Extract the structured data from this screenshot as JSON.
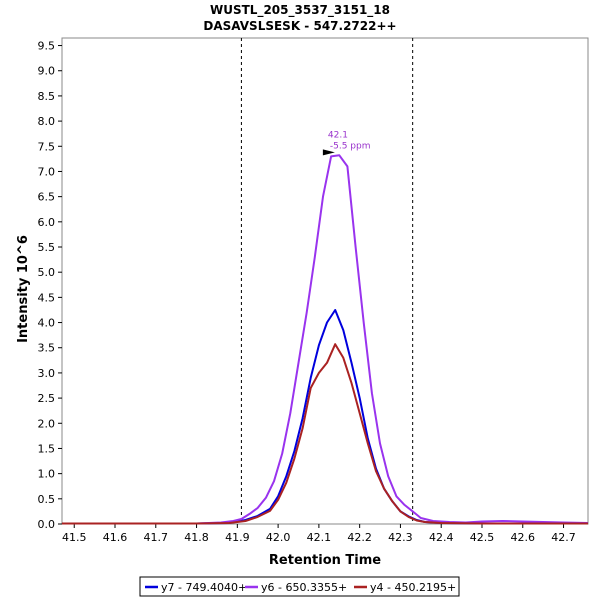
{
  "chart_data": {
    "type": "line",
    "title": "WUSTL_205_3537_3151_18",
    "subtitle": "DASAVSLSESK - 547.2722++",
    "xlabel": "Retention Time",
    "ylabel": "Intensity 10^6",
    "xlim": [
      41.47,
      42.76
    ],
    "ylim": [
      0,
      9.65
    ],
    "x_ticks": [
      "41.5",
      "41.6",
      "41.7",
      "41.8",
      "41.9",
      "42.0",
      "42.1",
      "42.2",
      "42.3",
      "42.4",
      "42.5",
      "42.6",
      "42.7"
    ],
    "y_ticks": [
      "0.0",
      "0.5",
      "1.0",
      "1.5",
      "2.0",
      "2.5",
      "3.0",
      "3.5",
      "4.0",
      "4.5",
      "5.0",
      "5.5",
      "6.0",
      "6.5",
      "7.0",
      "7.5",
      "8.0",
      "8.5",
      "9.0",
      "9.5"
    ],
    "boundaries": [
      41.91,
      42.33
    ],
    "annotation": {
      "x": 42.1,
      "y": 7.38,
      "line1": "42.1",
      "line2": "-5.5 ppm",
      "color": "#9933cc"
    },
    "legend_position": "bottom",
    "series": [
      {
        "name": "y7 - 749.4040+",
        "color": "#0000dd",
        "x": [
          41.47,
          41.8,
          41.88,
          41.92,
          41.95,
          41.98,
          42.0,
          42.02,
          42.04,
          42.06,
          42.08,
          42.1,
          42.12,
          42.14,
          42.16,
          42.18,
          42.2,
          42.22,
          42.24,
          42.26,
          42.28,
          42.3,
          42.32,
          42.34,
          42.36,
          42.4,
          42.5,
          42.6,
          42.76
        ],
        "y": [
          0.01,
          0.01,
          0.02,
          0.08,
          0.16,
          0.3,
          0.55,
          0.95,
          1.45,
          2.1,
          2.9,
          3.55,
          4.0,
          4.25,
          3.85,
          3.2,
          2.5,
          1.7,
          1.1,
          0.7,
          0.45,
          0.25,
          0.15,
          0.08,
          0.04,
          0.02,
          0.01,
          0.01,
          0.01
        ]
      },
      {
        "name": "y6 - 650.3355+",
        "color": "#9933ee",
        "x": [
          41.47,
          41.8,
          41.86,
          41.89,
          41.91,
          41.93,
          41.95,
          41.97,
          41.99,
          42.01,
          42.03,
          42.05,
          42.07,
          42.09,
          42.11,
          42.13,
          42.15,
          42.17,
          42.19,
          42.21,
          42.23,
          42.25,
          42.27,
          42.29,
          42.31,
          42.33,
          42.35,
          42.38,
          42.42,
          42.46,
          42.5,
          42.55,
          42.6,
          42.65,
          42.7,
          42.76
        ],
        "y": [
          0.01,
          0.01,
          0.03,
          0.06,
          0.1,
          0.2,
          0.32,
          0.52,
          0.85,
          1.4,
          2.2,
          3.2,
          4.2,
          5.3,
          6.5,
          7.3,
          7.32,
          7.1,
          5.5,
          4.0,
          2.6,
          1.6,
          0.95,
          0.55,
          0.38,
          0.25,
          0.12,
          0.06,
          0.04,
          0.03,
          0.05,
          0.06,
          0.05,
          0.04,
          0.03,
          0.02
        ]
      },
      {
        "name": "y4 - 450.2195+",
        "color": "#aa2222",
        "x": [
          41.47,
          41.8,
          41.88,
          41.92,
          41.95,
          41.98,
          42.0,
          42.02,
          42.04,
          42.06,
          42.08,
          42.1,
          42.12,
          42.14,
          42.16,
          42.18,
          42.2,
          42.22,
          42.24,
          42.26,
          42.28,
          42.3,
          42.32,
          42.34,
          42.36,
          42.4,
          42.5,
          42.6,
          42.76
        ],
        "y": [
          0.01,
          0.01,
          0.02,
          0.06,
          0.14,
          0.26,
          0.48,
          0.82,
          1.3,
          1.9,
          2.7,
          3.0,
          3.2,
          3.57,
          3.3,
          2.8,
          2.2,
          1.6,
          1.05,
          0.7,
          0.45,
          0.25,
          0.14,
          0.07,
          0.04,
          0.02,
          0.01,
          0.01,
          0.01
        ]
      }
    ]
  }
}
